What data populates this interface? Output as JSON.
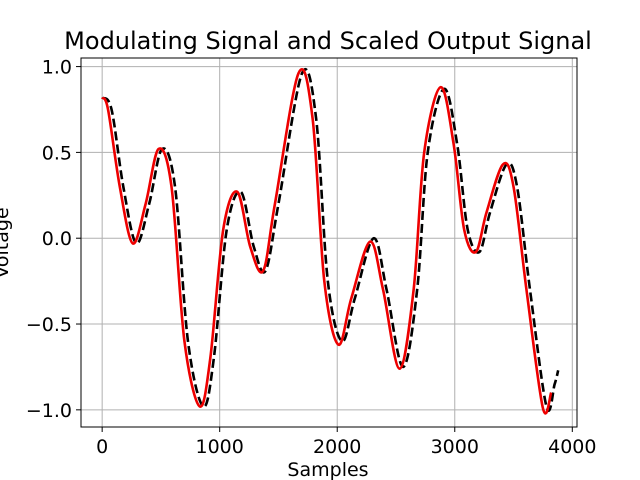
{
  "chart_data": {
    "type": "line",
    "title": "Modulating Signal and Scaled Output Signal",
    "xlabel": "Samples",
    "ylabel": "Voltage",
    "xlim": [
      -180,
      4040
    ],
    "ylim": [
      -1.1,
      1.05
    ],
    "grid": true,
    "x_ticks": [
      0,
      1000,
      2000,
      3000,
      4000
    ],
    "x_tick_labels": [
      "0",
      "1000",
      "2000",
      "3000",
      "4000"
    ],
    "y_ticks": [
      -1.0,
      -0.5,
      0.0,
      0.5,
      1.0
    ],
    "y_tick_labels": [
      "−1.0",
      "−0.5",
      "0.0",
      "0.5",
      "1.0"
    ],
    "series": [
      {
        "style": "dashed",
        "color": "#000000",
        "points": [
          [
            0,
            0.82
          ],
          [
            80,
            0.75
          ],
          [
            180,
            0.3
          ],
          [
            290,
            -0.03
          ],
          [
            400,
            0.2
          ],
          [
            510,
            0.52
          ],
          [
            620,
            0.3
          ],
          [
            730,
            -0.6
          ],
          [
            860,
            -0.98
          ],
          [
            950,
            -0.7
          ],
          [
            1060,
            0.05
          ],
          [
            1180,
            0.27
          ],
          [
            1290,
            -0.05
          ],
          [
            1390,
            -0.19
          ],
          [
            1500,
            0.2
          ],
          [
            1700,
            0.96
          ],
          [
            1820,
            0.7
          ],
          [
            1920,
            -0.25
          ],
          [
            2040,
            -0.6
          ],
          [
            2150,
            -0.35
          ],
          [
            2310,
            0.0
          ],
          [
            2420,
            -0.3
          ],
          [
            2560,
            -0.75
          ],
          [
            2680,
            -0.3
          ],
          [
            2770,
            0.5
          ],
          [
            2910,
            0.87
          ],
          [
            3020,
            0.55
          ],
          [
            3110,
            0.05
          ],
          [
            3210,
            -0.08
          ],
          [
            3300,
            0.15
          ],
          [
            3440,
            0.43
          ],
          [
            3530,
            0.3
          ],
          [
            3640,
            -0.3
          ],
          [
            3780,
            -0.98
          ],
          [
            3850,
            -0.85
          ],
          [
            3880,
            -0.77
          ]
        ]
      },
      {
        "style": "solid",
        "color": "#ee0000",
        "points": [
          [
            0,
            0.82
          ],
          [
            50,
            0.75
          ],
          [
            150,
            0.3
          ],
          [
            260,
            -0.03
          ],
          [
            370,
            0.2
          ],
          [
            480,
            0.52
          ],
          [
            590,
            0.3
          ],
          [
            700,
            -0.6
          ],
          [
            830,
            -0.98
          ],
          [
            920,
            -0.7
          ],
          [
            1030,
            0.05
          ],
          [
            1150,
            0.27
          ],
          [
            1260,
            -0.05
          ],
          [
            1370,
            -0.19
          ],
          [
            1470,
            0.2
          ],
          [
            1670,
            0.96
          ],
          [
            1790,
            0.7
          ],
          [
            1890,
            -0.25
          ],
          [
            2010,
            -0.62
          ],
          [
            2120,
            -0.35
          ],
          [
            2280,
            -0.02
          ],
          [
            2390,
            -0.3
          ],
          [
            2530,
            -0.76
          ],
          [
            2650,
            -0.3
          ],
          [
            2740,
            0.5
          ],
          [
            2880,
            0.88
          ],
          [
            2990,
            0.55
          ],
          [
            3080,
            0.05
          ],
          [
            3180,
            -0.08
          ],
          [
            3270,
            0.15
          ],
          [
            3410,
            0.43
          ],
          [
            3500,
            0.3
          ],
          [
            3610,
            -0.3
          ],
          [
            3750,
            -0.99
          ],
          [
            3820,
            -0.9
          ]
        ]
      }
    ]
  }
}
